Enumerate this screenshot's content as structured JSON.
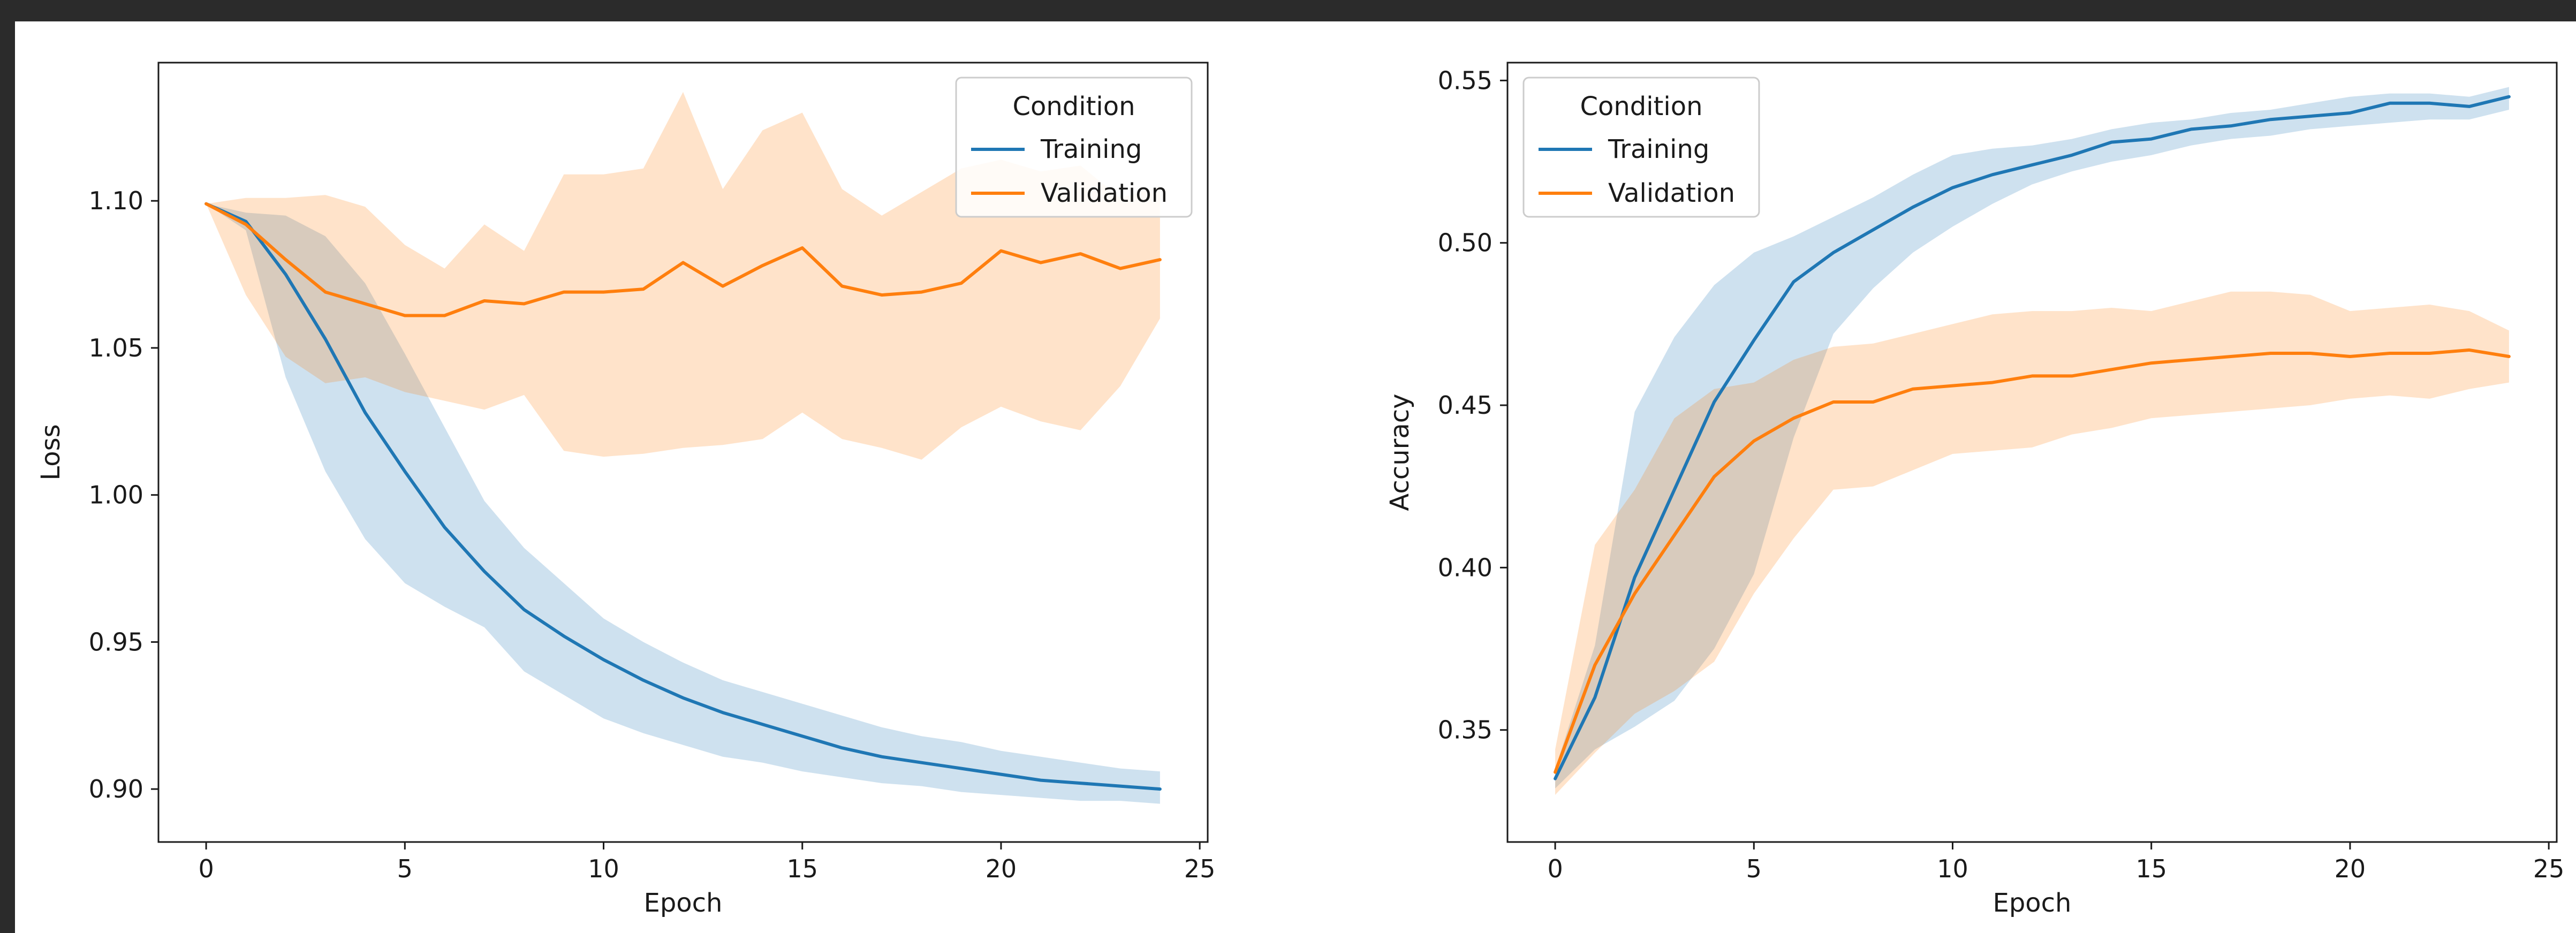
{
  "colors": {
    "background": "#2b2b2b",
    "training": "#1f77b4",
    "validation": "#ff7f0e"
  },
  "chart_data": [
    {
      "type": "line",
      "title": "",
      "xlabel": "Epoch",
      "ylabel": "Loss",
      "xlim": [
        -1.2,
        25.2
      ],
      "ylim": [
        0.882,
        1.147
      ],
      "xticks": [
        0,
        5,
        10,
        15,
        20,
        25
      ],
      "xtick_labels": [
        "0",
        "5",
        "10",
        "15",
        "20",
        "25"
      ],
      "yticks": [
        0.9,
        0.95,
        1.0,
        1.05,
        1.1
      ],
      "ytick_labels": [
        "0.90",
        "0.95",
        "1.00",
        "1.05",
        "1.10"
      ],
      "grid": false,
      "legend": {
        "title": "Condition",
        "placement": "upper right"
      },
      "series": [
        {
          "name": "Training",
          "x": [
            0,
            1,
            2,
            3,
            4,
            5,
            6,
            7,
            8,
            9,
            10,
            11,
            12,
            13,
            14,
            15,
            16,
            17,
            18,
            19,
            20,
            21,
            22,
            23,
            24
          ],
          "y": [
            1.099,
            1.093,
            1.075,
            1.053,
            1.028,
            1.008,
            0.989,
            0.974,
            0.961,
            0.952,
            0.944,
            0.937,
            0.931,
            0.926,
            0.922,
            0.918,
            0.914,
            0.911,
            0.909,
            0.907,
            0.905,
            0.903,
            0.902,
            0.901,
            0.9
          ],
          "lower": [
            1.099,
            1.09,
            1.04,
            1.008,
            0.985,
            0.97,
            0.962,
            0.955,
            0.94,
            0.932,
            0.924,
            0.919,
            0.915,
            0.911,
            0.909,
            0.906,
            0.904,
            0.902,
            0.901,
            0.899,
            0.898,
            0.897,
            0.896,
            0.896,
            0.895
          ],
          "upper": [
            1.099,
            1.096,
            1.095,
            1.088,
            1.072,
            1.048,
            1.023,
            0.998,
            0.982,
            0.97,
            0.958,
            0.95,
            0.943,
            0.937,
            0.933,
            0.929,
            0.925,
            0.921,
            0.918,
            0.916,
            0.913,
            0.911,
            0.909,
            0.907,
            0.906
          ]
        },
        {
          "name": "Validation",
          "x": [
            0,
            1,
            2,
            3,
            4,
            5,
            6,
            7,
            8,
            9,
            10,
            11,
            12,
            13,
            14,
            15,
            16,
            17,
            18,
            19,
            20,
            21,
            22,
            23,
            24
          ],
          "y": [
            1.099,
            1.092,
            1.08,
            1.069,
            1.065,
            1.061,
            1.061,
            1.066,
            1.065,
            1.069,
            1.069,
            1.07,
            1.079,
            1.071,
            1.078,
            1.084,
            1.071,
            1.068,
            1.069,
            1.072,
            1.083,
            1.079,
            1.082,
            1.077,
            1.08
          ],
          "lower": [
            1.099,
            1.068,
            1.047,
            1.038,
            1.04,
            1.035,
            1.032,
            1.029,
            1.034,
            1.015,
            1.013,
            1.014,
            1.016,
            1.017,
            1.019,
            1.028,
            1.019,
            1.016,
            1.012,
            1.023,
            1.03,
            1.025,
            1.022,
            1.037,
            1.06
          ],
          "upper": [
            1.099,
            1.101,
            1.101,
            1.102,
            1.098,
            1.085,
            1.077,
            1.092,
            1.083,
            1.109,
            1.109,
            1.111,
            1.137,
            1.104,
            1.124,
            1.13,
            1.104,
            1.095,
            1.103,
            1.111,
            1.114,
            1.11,
            1.112,
            1.101,
            1.105
          ]
        }
      ]
    },
    {
      "type": "line",
      "title": "",
      "xlabel": "Epoch",
      "ylabel": "Accuracy",
      "xlim": [
        -1.2,
        25.2
      ],
      "ylim": [
        0.3155,
        0.5555
      ],
      "xticks": [
        0,
        5,
        10,
        15,
        20,
        25
      ],
      "xtick_labels": [
        "0",
        "5",
        "10",
        "15",
        "20",
        "25"
      ],
      "yticks": [
        0.35,
        0.4,
        0.45,
        0.5,
        0.55
      ],
      "ytick_labels": [
        "0.35",
        "0.40",
        "0.45",
        "0.50",
        "0.55"
      ],
      "grid": false,
      "legend": {
        "title": "Condition",
        "placement": "upper left"
      },
      "series": [
        {
          "name": "Training",
          "x": [
            0,
            1,
            2,
            3,
            4,
            5,
            6,
            7,
            8,
            9,
            10,
            11,
            12,
            13,
            14,
            15,
            16,
            17,
            18,
            19,
            20,
            21,
            22,
            23,
            24
          ],
          "y": [
            0.335,
            0.36,
            0.397,
            0.424,
            0.451,
            0.47,
            0.488,
            0.497,
            0.504,
            0.511,
            0.517,
            0.521,
            0.524,
            0.527,
            0.531,
            0.532,
            0.535,
            0.536,
            0.538,
            0.539,
            0.54,
            0.543,
            0.543,
            0.542,
            0.545
          ],
          "lower": [
            0.332,
            0.344,
            0.351,
            0.359,
            0.375,
            0.398,
            0.44,
            0.472,
            0.486,
            0.497,
            0.505,
            0.512,
            0.518,
            0.522,
            0.525,
            0.527,
            0.53,
            0.532,
            0.533,
            0.535,
            0.536,
            0.537,
            0.538,
            0.538,
            0.541
          ],
          "upper": [
            0.338,
            0.376,
            0.448,
            0.471,
            0.487,
            0.497,
            0.502,
            0.508,
            0.514,
            0.521,
            0.527,
            0.529,
            0.53,
            0.532,
            0.535,
            0.537,
            0.538,
            0.54,
            0.541,
            0.543,
            0.545,
            0.546,
            0.546,
            0.545,
            0.548
          ]
        },
        {
          "name": "Validation",
          "x": [
            0,
            1,
            2,
            3,
            4,
            5,
            6,
            7,
            8,
            9,
            10,
            11,
            12,
            13,
            14,
            15,
            16,
            17,
            18,
            19,
            20,
            21,
            22,
            23,
            24
          ],
          "y": [
            0.337,
            0.37,
            0.392,
            0.41,
            0.428,
            0.439,
            0.446,
            0.451,
            0.451,
            0.455,
            0.456,
            0.457,
            0.459,
            0.459,
            0.461,
            0.463,
            0.464,
            0.465,
            0.466,
            0.466,
            0.465,
            0.466,
            0.466,
            0.467,
            0.465
          ],
          "lower": [
            0.33,
            0.343,
            0.355,
            0.362,
            0.371,
            0.392,
            0.409,
            0.424,
            0.425,
            0.43,
            0.435,
            0.436,
            0.437,
            0.441,
            0.443,
            0.446,
            0.447,
            0.448,
            0.449,
            0.45,
            0.452,
            0.453,
            0.452,
            0.455,
            0.457
          ],
          "upper": [
            0.344,
            0.407,
            0.424,
            0.446,
            0.455,
            0.457,
            0.464,
            0.468,
            0.469,
            0.472,
            0.475,
            0.478,
            0.479,
            0.479,
            0.48,
            0.479,
            0.482,
            0.485,
            0.485,
            0.484,
            0.479,
            0.48,
            0.481,
            0.479,
            0.473
          ]
        }
      ]
    }
  ]
}
